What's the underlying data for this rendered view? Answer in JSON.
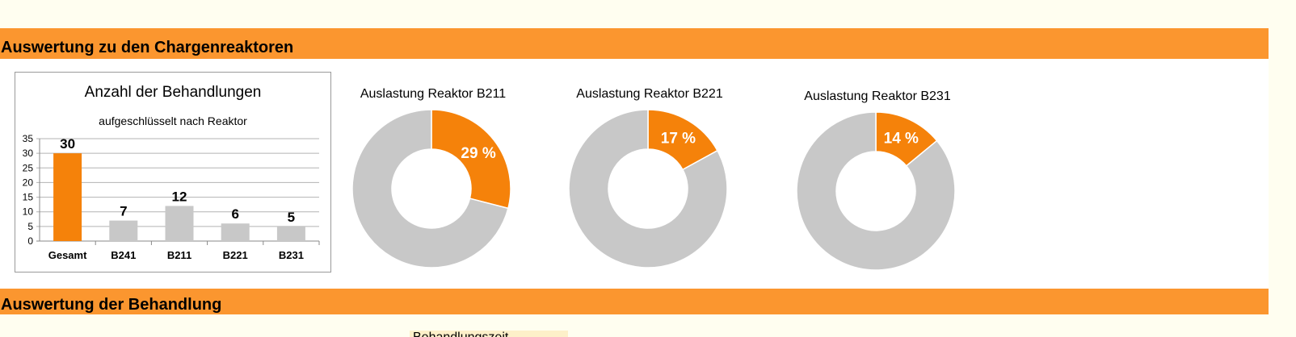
{
  "sections": {
    "reactors_title": "Auswertung zu den Chargenreaktoren",
    "treatment_title": "Auswertung der Behandlung",
    "partial_cell_text": "Behandlungszeit"
  },
  "colors": {
    "accent": "#fb962f",
    "highlight_orange": "#f5820a",
    "neutral_gray": "#c8c8c8"
  },
  "chart_data": [
    {
      "type": "bar",
      "title": "Anzahl der Behandlungen",
      "subtitle": "aufgeschlüsselt nach Reaktor",
      "categories": [
        "Gesamt",
        "B241",
        "B211",
        "B221",
        "B231"
      ],
      "values": [
        30,
        7,
        12,
        6,
        5
      ],
      "data_labels": [
        "30",
        "7",
        "12",
        "6",
        "5"
      ],
      "bar_colors": [
        "#f5820a",
        "#c8c8c8",
        "#c8c8c8",
        "#c8c8c8",
        "#c8c8c8"
      ],
      "ylim": [
        0,
        35
      ],
      "yticks": [
        0,
        5,
        10,
        15,
        20,
        25,
        30,
        35
      ],
      "grid": true,
      "xlabel": "",
      "ylabel": ""
    },
    {
      "type": "pie",
      "title": "Auslastung Reaktor B211",
      "values": [
        29,
        71
      ],
      "labels": [
        "29 %",
        ""
      ],
      "colors": [
        "#f5820a",
        "#c8c8c8"
      ]
    },
    {
      "type": "pie",
      "title": "Auslastung Reaktor B221",
      "values": [
        17,
        83
      ],
      "labels": [
        "17 %",
        ""
      ],
      "colors": [
        "#f5820a",
        "#c8c8c8"
      ]
    },
    {
      "type": "pie",
      "title": "Auslastung Reaktor B231",
      "values": [
        14,
        86
      ],
      "labels": [
        "14 %",
        ""
      ],
      "colors": [
        "#f5820a",
        "#c8c8c8"
      ]
    }
  ]
}
